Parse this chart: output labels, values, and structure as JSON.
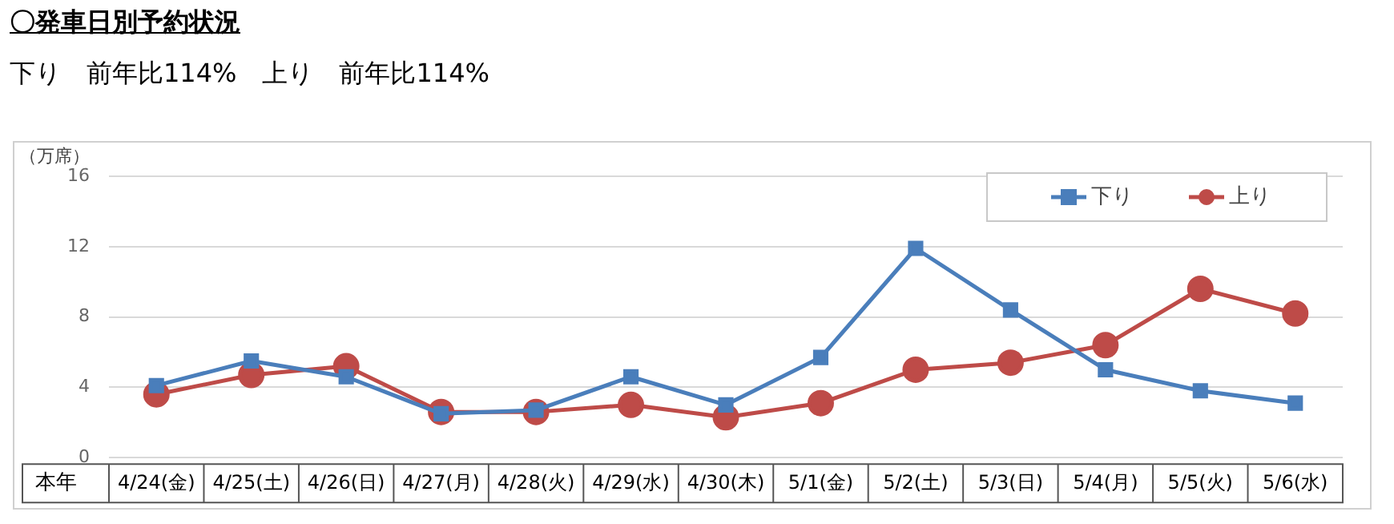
{
  "chart_data": {
    "type": "line",
    "title": "〇発車日別予約状況",
    "subtitle": "下り　前年比114%　上り　前年比114%",
    "ylabel": "（万席）",
    "annotations": [
      "本年"
    ],
    "categories": [
      "4/24(金)",
      "4/25(土)",
      "4/26(日)",
      "4/27(月)",
      "4/28(火)",
      "4/29(水)",
      "4/30(木)",
      "5/1(金)",
      "5/2(土)",
      "5/3(日)",
      "5/4(月)",
      "5/5(火)",
      "5/6(水)"
    ],
    "series": [
      {
        "name": "下り",
        "color": "#4a7ebb",
        "marker": "square",
        "values": [
          4.1,
          5.5,
          4.6,
          2.5,
          2.7,
          4.6,
          3.0,
          5.7,
          11.9,
          8.4,
          5.0,
          3.8,
          3.1
        ]
      },
      {
        "name": "上り",
        "color": "#be4b48",
        "marker": "circle",
        "values": [
          3.6,
          4.7,
          5.2,
          2.6,
          2.6,
          3.0,
          2.3,
          3.1,
          5.0,
          5.4,
          6.4,
          9.6,
          8.2
        ]
      }
    ],
    "ylim": [
      0,
      16
    ],
    "yticks": [
      0,
      4,
      8,
      12,
      16
    ],
    "grid": "y",
    "legend": "top right",
    "line_style": "solid"
  }
}
